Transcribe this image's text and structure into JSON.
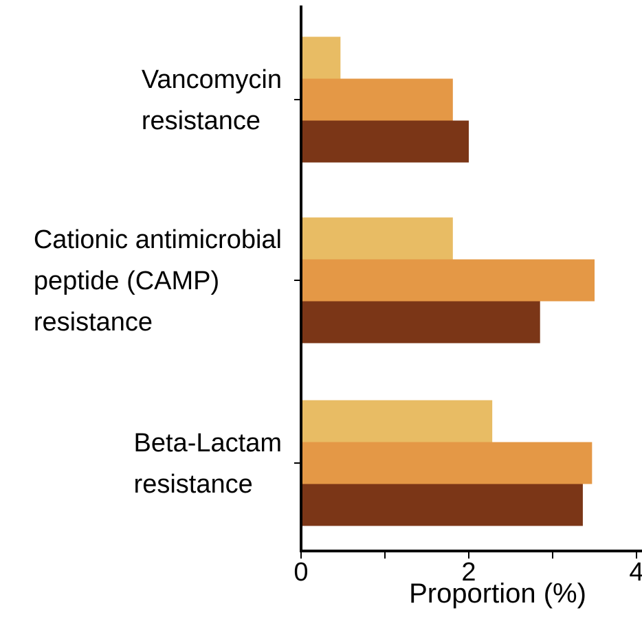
{
  "chart_data": {
    "type": "bar",
    "orientation": "horizontal",
    "categories": [
      [
        "Vancomycin",
        "resistance"
      ],
      [
        "Cationic antimicrobial",
        "peptide (CAMP)",
        "resistance"
      ],
      [
        "Beta-Lactam",
        "resistance"
      ]
    ],
    "series": [
      {
        "color": "#E8BC64",
        "values": [
          0.47,
          1.81,
          2.28
        ]
      },
      {
        "color": "#E49846",
        "values": [
          1.81,
          3.5,
          3.47
        ]
      },
      {
        "color": "#7B3617",
        "values": [
          2.0,
          2.85,
          3.36
        ]
      }
    ],
    "xlabel": "Proportion (%)",
    "xlim": [
      0,
      4
    ],
    "xticks": [
      0,
      1,
      2,
      3,
      4
    ],
    "xtick_labels": [
      "0",
      "",
      "2",
      "",
      "4"
    ],
    "grid": false,
    "legend": "none"
  }
}
